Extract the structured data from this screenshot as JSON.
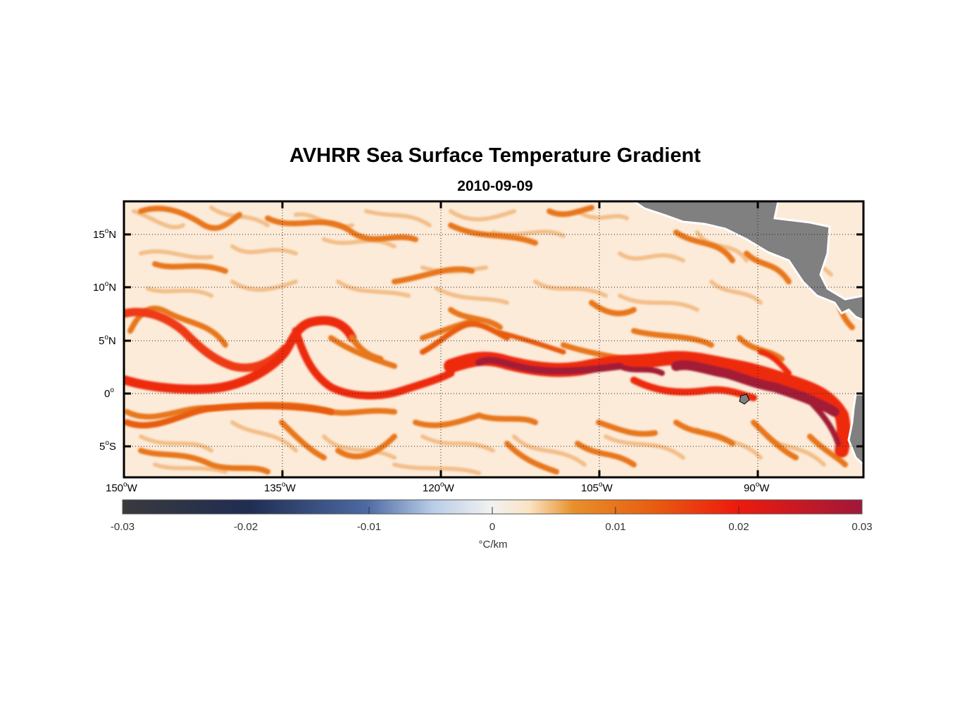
{
  "title": "AVHRR Sea Surface Temperature Gradient",
  "subtitle": "2010-09-09",
  "map": {
    "lon_range": [
      -150,
      -80
    ],
    "lat_range": [
      -8,
      18
    ],
    "gridlines": "dotted",
    "lat_ticks": [
      {
        "value": 15,
        "label": "15",
        "deg": "o",
        "hemi": "N"
      },
      {
        "value": 10,
        "label": "10",
        "deg": "o",
        "hemi": "N"
      },
      {
        "value": 5,
        "label": "5",
        "deg": "o",
        "hemi": "N"
      },
      {
        "value": 0,
        "label": "0",
        "deg": "o",
        "hemi": ""
      },
      {
        "value": -5,
        "label": "5",
        "deg": "o",
        "hemi": "S"
      }
    ],
    "lon_ticks": [
      {
        "value": -150,
        "label": "150",
        "deg": "o",
        "hemi": "W"
      },
      {
        "value": -135,
        "label": "135",
        "deg": "o",
        "hemi": "W"
      },
      {
        "value": -120,
        "label": "120",
        "deg": "o",
        "hemi": "W"
      },
      {
        "value": -105,
        "label": "105",
        "deg": "o",
        "hemi": "W"
      },
      {
        "value": -90,
        "label": "90",
        "deg": "o",
        "hemi": "W"
      }
    ],
    "colors": {
      "background": "#fcebd9",
      "land": "#808080",
      "front_low": "#e8771e",
      "front_mid": "#ee2a10",
      "front_high": "#a31a36"
    }
  },
  "colorbar": {
    "ticks": [
      "-0.03",
      "-0.02",
      "-0.01",
      "0",
      "0.01",
      "0.02",
      "0.03"
    ],
    "unit": "°C/km",
    "range": [
      -0.03,
      0.03
    ]
  }
}
